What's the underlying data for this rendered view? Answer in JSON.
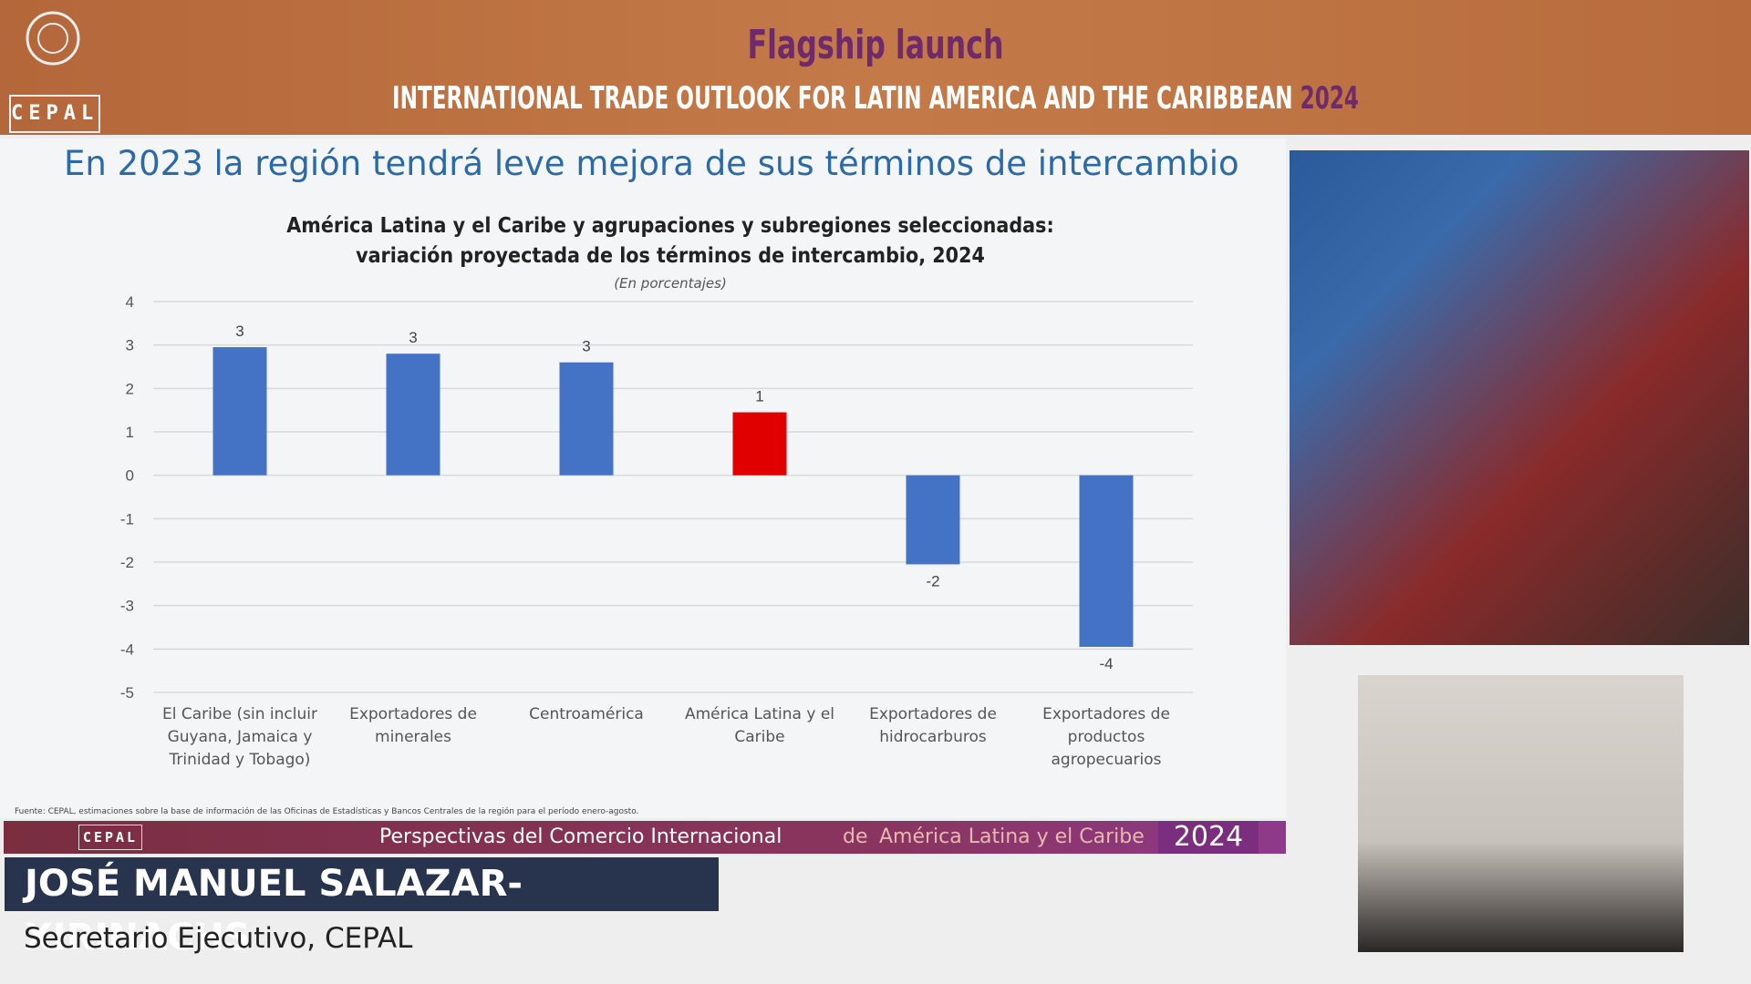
{
  "header": {
    "title": "Flagship launch",
    "subtitle": "INTERNATIONAL TRADE OUTLOOK FOR LATIN AMERICA AND THE CARIBBEAN",
    "year": "2024",
    "logo": "CEPAL"
  },
  "slide": {
    "heading": "En 2023 la región tendrá leve mejora de sus términos de intercambio",
    "source": "Fuente: CEPAL, estimaciones sobre la base de información de las Oficinas de Estadísticas y Bancos Centrales de la región para el período enero-agosto."
  },
  "chart_data": {
    "type": "bar",
    "title": "América Latina y el Caribe y agrupaciones y subregiones seleccionadas: variación proyectada de los términos de intercambio, 2024",
    "subtitle": "(En porcentajes)",
    "categories": [
      "El Caribe (sin incluir Guyana, Jamaica y Trinidad y Tobago)",
      "Exportadores de minerales",
      "Centroamérica",
      "América Latina y el Caribe",
      "Exportadores de hidrocarburos",
      "Exportadores de productos agropecuarios"
    ],
    "values": [
      2.95,
      2.8,
      2.6,
      1.45,
      -2.05,
      -3.95
    ],
    "value_labels": [
      "3",
      "3",
      "3",
      "1",
      "-2",
      "-4"
    ],
    "colors": [
      "#4472c4",
      "#4472c4",
      "#4472c4",
      "#e00000",
      "#4472c4",
      "#4472c4"
    ],
    "ylim": [
      -5,
      4
    ],
    "yticks": [
      4,
      3,
      2,
      1,
      0,
      -1,
      -2,
      -3,
      -4,
      -5
    ],
    "grid": true
  },
  "lower_third": {
    "banner_logo": "CEPAL",
    "banner_title": "Perspectivas del Comercio Internacional",
    "banner_connector": "de",
    "banner_region": "América Latina y el Caribe",
    "banner_year": "2024",
    "name": "JOSÉ MANUEL SALAZAR-XIRINACHS",
    "role": "Secretario Ejecutivo, CEPAL"
  }
}
